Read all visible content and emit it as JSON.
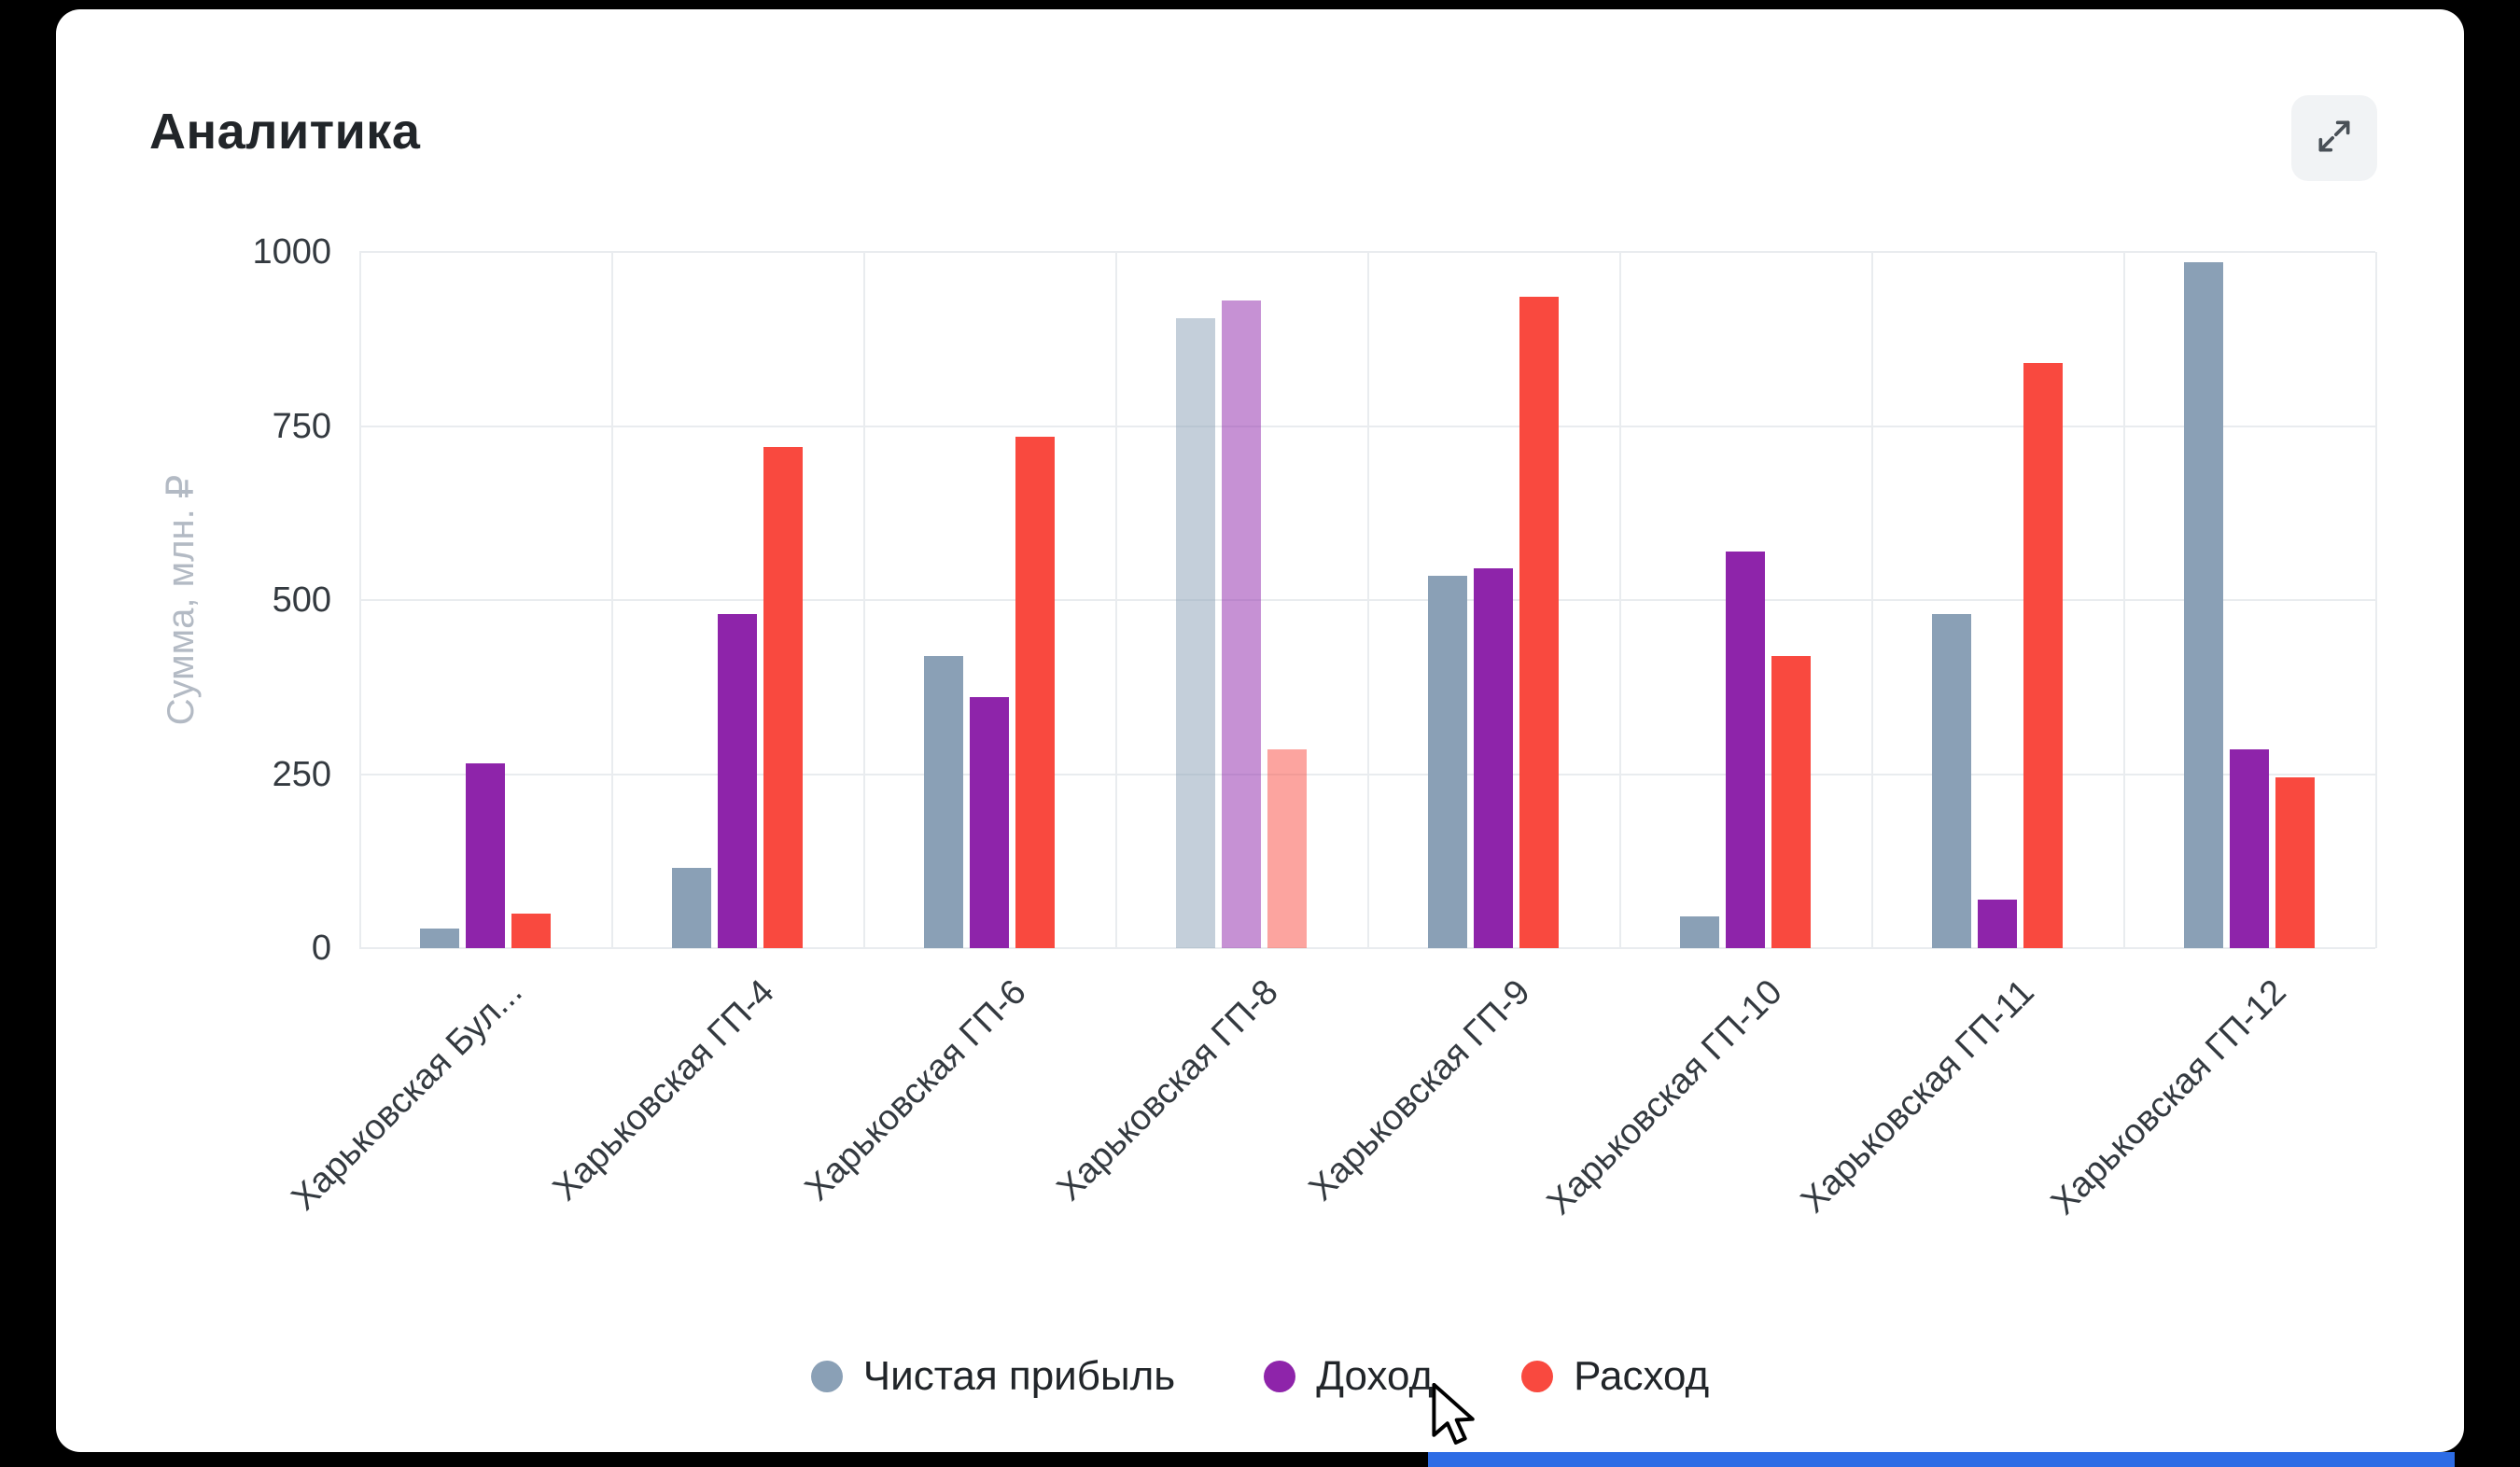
{
  "icons": {
    "expand": "fullscreen-expand-arrows",
    "cursor": "arrow-pointer"
  },
  "chart_data": {
    "type": "bar",
    "title": "Аналитика",
    "ylabel": "Сумма, млн. ₽",
    "xlabel": "",
    "ylim": [
      0,
      1000
    ],
    "yticks": [
      0,
      250,
      500,
      750,
      1000
    ],
    "grid": true,
    "legend_position": "bottom",
    "categories": [
      "Харьковская Бул...",
      "Харьковская ГП-4",
      "Харьковская ГП-6",
      "Харьковская ГП-8",
      "Харьковская ГП-9",
      "Харьковская ГП-10",
      "Харьковская ГП-11",
      "Харьковская ГП-12"
    ],
    "series": [
      {
        "name": "Чистая прибыль",
        "color": "#8aa0b6",
        "values": [
          28,
          115,
          420,
          905,
          535,
          45,
          480,
          985
        ]
      },
      {
        "name": "Доход",
        "color": "#8e24aa",
        "values": [
          265,
          480,
          360,
          930,
          545,
          570,
          70,
          285
        ]
      },
      {
        "name": "Расход",
        "color": "#f9493f",
        "values": [
          50,
          720,
          735,
          285,
          935,
          420,
          840,
          245
        ]
      }
    ],
    "faded_category_index": 3
  }
}
